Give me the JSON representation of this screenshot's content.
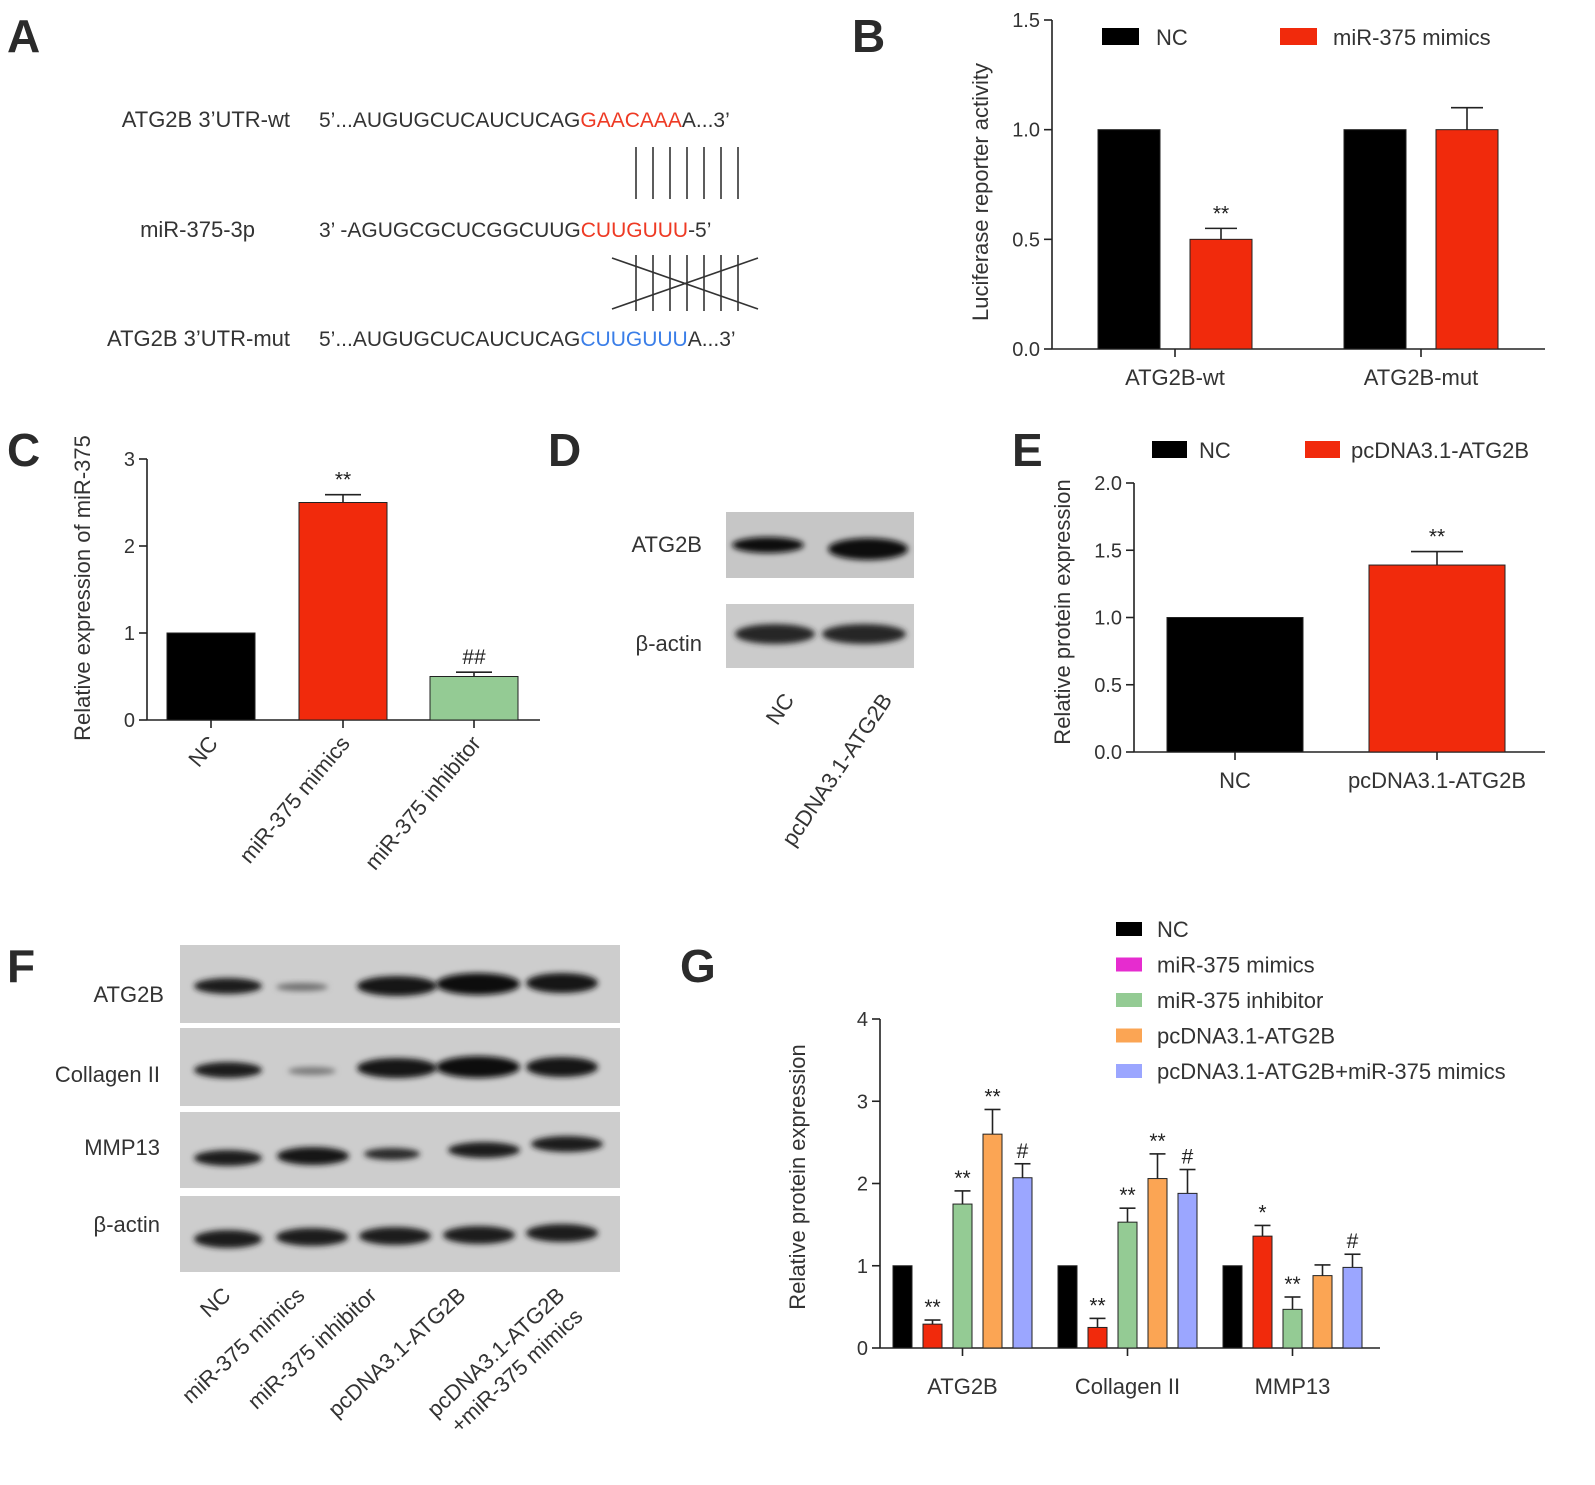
{
  "panels": {
    "a": {
      "letter": "A",
      "rows": [
        {
          "name": "ATG2B 3’UTR-wt",
          "prefix": "5’...AUGUGCUCAUCUCAG",
          "site": "GAACAAA",
          "suffix": "A...3’",
          "site_color": "#ee3a24"
        },
        {
          "name": "miR-375-3p",
          "prefix": "3’ -AGUGCGCUCGGCUUG",
          "site": "CUUGUUU",
          "suffix": "-5’",
          "site_color": "#ee3a24"
        },
        {
          "name": "ATG2B 3’UTR-mut",
          "prefix": "5’...AUGUGCUCAUCUCAG",
          "site": "CUUGUUU",
          "suffix": "A...3’",
          "site_color": "#3a7ee8"
        }
      ]
    },
    "b": {
      "letter": "B"
    },
    "c": {
      "letter": "C"
    },
    "d": {
      "letter": "D",
      "blot_labels": [
        "ATG2B",
        "β-actin"
      ],
      "lane_labels": [
        "NC",
        "pcDNA3.1-ATG2B"
      ]
    },
    "e": {
      "letter": "E"
    },
    "f": {
      "letter": "F",
      "blot_labels": [
        "ATG2B",
        "Collagen II",
        "MMP13",
        "β-actin"
      ],
      "lane_labels": [
        "NC",
        "miR-375 mimics",
        "miR-375 inhibitor",
        "pcDNA3.1-ATG2B",
        "pcDNA3.1-ATG2B",
        "+miR-375 mimics"
      ]
    },
    "g": {
      "letter": "G"
    }
  },
  "chart_data": [
    {
      "panel": "B",
      "type": "bar",
      "categories": [
        "ATG2B-wt",
        "ATG2B-mut"
      ],
      "series": [
        {
          "name": "NC",
          "color": "#000000",
          "values": [
            1.0,
            1.0
          ],
          "errors": [
            0,
            0
          ],
          "sig": [
            "",
            ""
          ]
        },
        {
          "name": "miR-375 mimics",
          "color": "#f12a0c",
          "values": [
            0.5,
            1.0
          ],
          "errors": [
            0.05,
            0.1
          ],
          "sig": [
            "**",
            ""
          ]
        }
      ],
      "ylabel": "Luciferase  reporter activity",
      "ylim": [
        0,
        1.5
      ],
      "yticks": [
        "0.0",
        "0.5",
        "1.0",
        "1.5"
      ],
      "legend": "top"
    },
    {
      "panel": "C",
      "type": "bar",
      "categories": [
        "NC",
        "miR-375 mimics",
        "miR-375 inhibitor"
      ],
      "values": [
        1.0,
        2.5,
        0.5
      ],
      "errors": [
        0,
        0.09,
        0.05
      ],
      "colors": [
        "#000000",
        "#f12a0c",
        "#94cb94"
      ],
      "sig": [
        "",
        "**",
        "##"
      ],
      "ylabel": "Relative expression of miR-375",
      "ylim": [
        0,
        3
      ],
      "yticks": [
        "0",
        "1",
        "2",
        "3"
      ]
    },
    {
      "panel": "E",
      "type": "bar",
      "categories": [
        "NC",
        "pcDNA3.1-ATG2B"
      ],
      "values": [
        1.0,
        1.39
      ],
      "errors": [
        0,
        0.1
      ],
      "colors": [
        "#000000",
        "#f12a0c"
      ],
      "sig": [
        "",
        "**"
      ],
      "legend_names": [
        "NC",
        "pcDNA3.1-ATG2B"
      ],
      "ylabel": "Relative protein expression",
      "ylim": [
        0,
        2.0
      ],
      "yticks": [
        "0.0",
        "0.5",
        "1.0",
        "1.5",
        "2.0"
      ],
      "legend": "top"
    },
    {
      "panel": "G",
      "type": "bar",
      "categories": [
        "ATG2B",
        "Collagen II",
        "MMP13"
      ],
      "series": [
        {
          "name": "NC",
          "legend_color": "#000000",
          "color": "#000000",
          "values": [
            1.0,
            1.0,
            1.0
          ],
          "errors": [
            0,
            0,
            0
          ],
          "sig": [
            "",
            "",
            ""
          ]
        },
        {
          "name": "miR-375 mimics",
          "legend_color": "#e62ccf",
          "color": "#f12a0c",
          "values": [
            0.29,
            0.25,
            1.36
          ],
          "errors": [
            0.05,
            0.11,
            0.13
          ],
          "sig": [
            "**",
            "**",
            "*"
          ]
        },
        {
          "name": "miR-375 inhibitor",
          "legend_color": "#94cb94",
          "color": "#94cb94",
          "values": [
            1.75,
            1.53,
            0.47
          ],
          "errors": [
            0.16,
            0.17,
            0.15
          ],
          "sig": [
            "**",
            "**",
            "**"
          ]
        },
        {
          "name": "pcDNA3.1-ATG2B",
          "legend_color": "#fba554",
          "color": "#fba554",
          "values": [
            2.6,
            2.06,
            0.88
          ],
          "errors": [
            0.3,
            0.3,
            0.13
          ],
          "sig": [
            "**",
            "**",
            ""
          ]
        },
        {
          "name": "pcDNA3.1-ATG2B+miR-375 mimics",
          "legend_color": "#9ba6ff",
          "color": "#9ba6ff",
          "values": [
            2.07,
            1.88,
            0.98
          ],
          "errors": [
            0.17,
            0.29,
            0.16
          ],
          "sig": [
            "#",
            "#",
            "#"
          ]
        }
      ],
      "ylabel": "Relative protein expression",
      "ylim": [
        0,
        4
      ],
      "yticks": [
        "0",
        "1",
        "2",
        "3",
        "4"
      ],
      "legend": "top-right"
    }
  ]
}
